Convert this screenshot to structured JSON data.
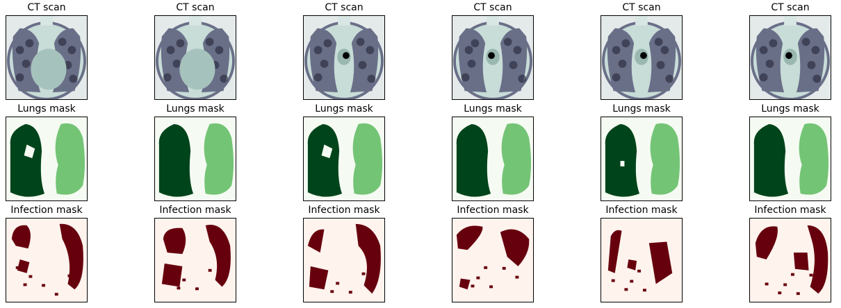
{
  "rows": [
    {
      "key": "ct",
      "title": "CT scan"
    },
    {
      "key": "lungs",
      "title": "Lungs mask"
    },
    {
      "key": "infection",
      "title": "Infection mask"
    }
  ],
  "columns": 6,
  "colors": {
    "ct_bg": "#e4eaea",
    "ct_dark": "#1d1f30",
    "ct_mid": "#6a6f88",
    "ct_light": "#c8dcd8",
    "lungs_bg": "#f5fbf2",
    "lungs_dark": "#00441b",
    "lungs_light": "#74c476",
    "inf_bg": "#fff3ee",
    "inf_dark": "#67000d"
  }
}
